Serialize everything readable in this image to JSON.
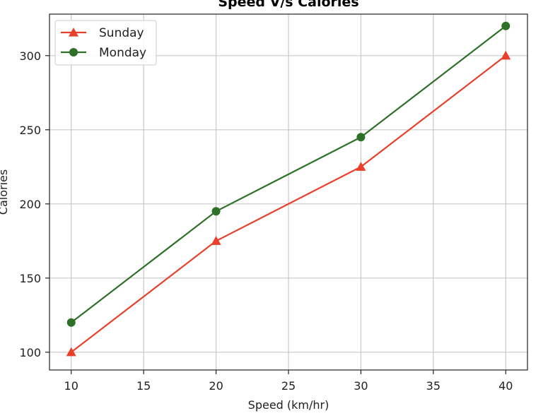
{
  "chart_data": {
    "type": "line",
    "title": "Speed V/s Calories",
    "xlabel": "Speed (km/hr)",
    "ylabel": "Calories",
    "x": [
      10,
      20,
      30,
      40
    ],
    "xlim": [
      8.5,
      41.5
    ],
    "ylim": [
      88,
      328
    ],
    "xticks": [
      10,
      15,
      20,
      25,
      30,
      35,
      40
    ],
    "yticks": [
      100,
      150,
      200,
      250,
      300
    ],
    "grid": true,
    "legend_position": "top-left",
    "series": [
      {
        "name": "Sunday",
        "values": [
          100,
          175,
          225,
          300
        ],
        "color": "#e8402a",
        "marker": "triangle-up"
      },
      {
        "name": "Monday",
        "values": [
          120,
          195,
          245,
          320
        ],
        "color": "#2e7027",
        "marker": "circle"
      }
    ]
  }
}
